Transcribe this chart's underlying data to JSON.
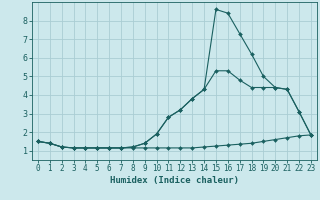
{
  "xlabel": "Humidex (Indice chaleur)",
  "background_color": "#cce8ec",
  "grid_color": "#aacdd4",
  "line_color": "#1a6060",
  "x_ticks": [
    0,
    1,
    2,
    3,
    4,
    5,
    6,
    7,
    8,
    9,
    10,
    11,
    12,
    13,
    14,
    15,
    16,
    17,
    18,
    19,
    20,
    21,
    22,
    23
  ],
  "y_ticks": [
    1,
    2,
    3,
    4,
    5,
    6,
    7,
    8
  ],
  "ylim": [
    0.5,
    9.0
  ],
  "xlim": [
    -0.5,
    23.5
  ],
  "series": [
    {
      "x": [
        0,
        1,
        2,
        3,
        4,
        5,
        6,
        7,
        8,
        9,
        10,
        11,
        12,
        13,
        14,
        15,
        16,
        17,
        18,
        19,
        20,
        21,
        22,
        23
      ],
      "y": [
        1.5,
        1.4,
        1.2,
        1.15,
        1.15,
        1.15,
        1.15,
        1.15,
        1.15,
        1.15,
        1.15,
        1.15,
        1.15,
        1.15,
        1.2,
        1.25,
        1.3,
        1.35,
        1.4,
        1.5,
        1.6,
        1.7,
        1.8,
        1.85
      ]
    },
    {
      "x": [
        0,
        1,
        2,
        3,
        4,
        5,
        6,
        7,
        8,
        9,
        10,
        11,
        12,
        13,
        14,
        15,
        16,
        17,
        18,
        19,
        20,
        21,
        22,
        23
      ],
      "y": [
        1.5,
        1.4,
        1.2,
        1.15,
        1.15,
        1.15,
        1.15,
        1.15,
        1.2,
        1.4,
        1.9,
        2.8,
        3.2,
        3.8,
        4.3,
        5.3,
        5.3,
        4.8,
        4.4,
        4.4,
        4.4,
        4.3,
        3.1,
        1.85
      ]
    },
    {
      "x": [
        0,
        1,
        2,
        3,
        4,
        5,
        6,
        7,
        8,
        9,
        10,
        11,
        12,
        13,
        14,
        15,
        16,
        17,
        18,
        19,
        20,
        21,
        22,
        23
      ],
      "y": [
        1.5,
        1.4,
        1.2,
        1.15,
        1.15,
        1.15,
        1.15,
        1.15,
        1.2,
        1.4,
        1.9,
        2.8,
        3.2,
        3.8,
        4.3,
        8.6,
        8.4,
        7.3,
        6.2,
        5.0,
        4.4,
        4.3,
        3.1,
        1.85
      ]
    }
  ]
}
